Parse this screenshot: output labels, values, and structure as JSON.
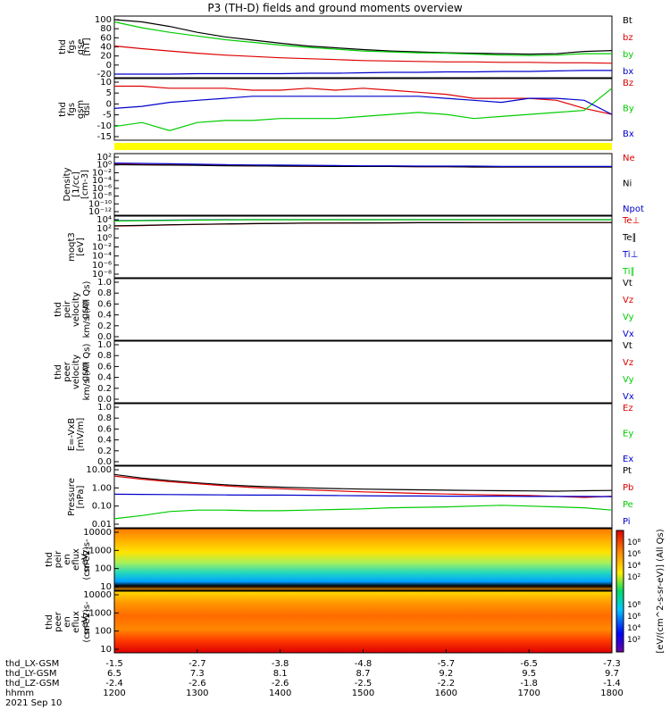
{
  "chart_data": {
    "type": "line",
    "title": "P3 (TH-D) fields and ground moments overview",
    "panels": [
      {
        "ylabel": [
          "thd",
          "fgs",
          "gse",
          "[nT]"
        ],
        "yticks": [
          "100",
          "80",
          "60",
          "40",
          "20",
          "0",
          "-20"
        ],
        "ylim": [
          -20,
          100
        ],
        "series": [
          {
            "name": "Bt",
            "color": "#000000",
            "values": [
              100,
              95,
              85,
              72,
              62,
              55,
              48,
              42,
              38,
              34,
              31,
              29,
              27,
              26,
              25,
              24,
              25,
              30,
              32
            ]
          },
          {
            "name": "bz",
            "color": "#dd0000",
            "values": [
              42,
              36,
              31,
              26,
              22,
              19,
              16,
              14,
              12,
              10,
              9,
              8,
              7,
              7,
              6,
              6,
              5,
              5,
              4
            ]
          },
          {
            "name": "by",
            "color": "#00cc00",
            "values": [
              95,
              82,
              72,
              64,
              56,
              50,
              44,
              39,
              35,
              31,
              29,
              27,
              26,
              24,
              22,
              21,
              22,
              25,
              25
            ]
          },
          {
            "name": "bx",
            "color": "#0000cc",
            "values": [
              -20,
              -20,
              -20,
              -19,
              -19,
              -19,
              -19,
              -18,
              -18,
              -17,
              -16,
              -16,
              -15,
              -15,
              -14,
              -14,
              -13,
              -12,
              -12
            ]
          }
        ]
      },
      {
        "ylabel": [
          "thd",
          "fgs",
          "gsm",
          "dsl"
        ],
        "yticks": [
          "10",
          "5",
          "0",
          "-5",
          "-10",
          "-15"
        ],
        "ylim": [
          -17,
          10
        ],
        "series": [
          {
            "name": "Bz",
            "color": "#dd0000",
            "values": [
              8,
              8,
              7,
              7,
              7,
              6,
              6,
              7,
              6,
              7,
              6,
              5,
              4,
              2,
              2,
              2,
              1,
              -3,
              -6
            ]
          },
          {
            "name": "By",
            "color": "#00cc00",
            "values": [
              -12,
              -10,
              -14,
              -10,
              -9,
              -9,
              -8,
              -8,
              -8,
              -7,
              -6,
              -5,
              -6,
              -8,
              -7,
              -6,
              -5,
              -4,
              7
            ]
          },
          {
            "name": "Bx",
            "color": "#0000cc",
            "values": [
              -3,
              -2,
              0,
              1,
              2,
              3,
              3,
              3,
              3,
              3,
              3,
              3,
              2,
              1,
              0,
              2,
              2,
              1,
              -6
            ]
          }
        ]
      },
      {
        "ylabel": [
          "Density",
          "[1/cc]",
          "[cm-3]"
        ],
        "yticks": [
          "10²",
          "10⁰",
          "10⁻²",
          "10⁻⁴",
          "10⁻⁶",
          "10⁻⁸",
          "10⁻¹⁰",
          "10⁻¹²"
        ],
        "series": [
          {
            "name": "Ne",
            "color": "#dd0000",
            "values": [
              1.5,
              1.2,
              1,
              0.9,
              0.7,
              0.6,
              0.5,
              0.45,
              0.4,
              0.4,
              0.4,
              0.35,
              0.35,
              0.3,
              0.3,
              0.3,
              0.3,
              0.3,
              0.3
            ]
          },
          {
            "name": "Ni",
            "color": "#000000",
            "values": [
              1.2,
              1.0,
              0.9,
              0.8,
              0.6,
              0.55,
              0.5,
              0.45,
              0.4,
              0.4,
              0.4,
              0.35,
              0.35,
              0.3,
              0.3,
              0.3,
              0.3,
              0.3,
              0.3
            ]
          },
          {
            "name": "Npot",
            "color": "#0000cc",
            "values": [
              3,
              2.5,
              2,
              1.5,
              1.2,
              1,
              0.9,
              0.8,
              0.7,
              0.6,
              0.6,
              0.5,
              0.5,
              0.5,
              0.4,
              0.4,
              0.4,
              0.4,
              0.4
            ]
          }
        ]
      },
      {
        "ylabel": [
          "moqt3",
          "[eV]"
        ],
        "yticks": [
          "10⁴",
          "10²",
          "10⁰",
          "10⁻²",
          "10⁻⁴",
          "10⁻⁶",
          "10⁻⁸"
        ],
        "series": [
          {
            "name": "Te⊥",
            "color": "#dd0000",
            "values": [
              400,
              500,
              700,
              900,
              1100,
              1300,
              1500,
              1700,
              1800,
              1900,
              2000,
              2100,
              2100,
              2200,
              2200,
              2300,
              2300,
              2300,
              2300
            ]
          },
          {
            "name": "Te∥",
            "color": "#000000",
            "values": [
              450,
              550,
              750,
              950,
              1150,
              1350,
              1550,
              1750,
              1850,
              1950,
              2050,
              2150,
              2150,
              2250,
              2250,
              2350,
              2350,
              2350,
              2350
            ]
          },
          {
            "name": "Ti⊥",
            "color": "#0000cc",
            "values": [
              6000,
              7000,
              8000,
              9000,
              10000,
              11000,
              12000,
              13000,
              13000,
              14000,
              14000,
              14000,
              15000,
              15000,
              15000,
              15000,
              15000,
              15000,
              15000
            ]
          },
          {
            "name": "Ti∥",
            "color": "#00cc00",
            "values": [
              5000,
              6000,
              7000,
              8000,
              9000,
              10000,
              11000,
              12000,
              12000,
              13000,
              13000,
              13000,
              14000,
              14000,
              14000,
              14000,
              14000,
              14000,
              14000
            ]
          }
        ]
      },
      {
        "ylabel": [
          "thd",
          "peir",
          "velocity",
          "gsm",
          "km/s (All Qs)"
        ],
        "yticks": [
          "1.0",
          "0.8",
          "0.6",
          "0.4",
          "0.2",
          "0.0"
        ],
        "legend": [
          {
            "name": "Vt",
            "color": "#000000"
          },
          {
            "name": "Vz",
            "color": "#dd0000"
          },
          {
            "name": "Vy",
            "color": "#00cc00"
          },
          {
            "name": "Vx",
            "color": "#0000cc"
          }
        ]
      },
      {
        "ylabel": [
          "thd",
          "peer",
          "velocity",
          "gsm",
          "km/s (All Qs)"
        ],
        "yticks": [
          "1.0",
          "0.8",
          "0.6",
          "0.4",
          "0.2",
          "0.0"
        ],
        "legend": [
          {
            "name": "Vt",
            "color": "#000000"
          },
          {
            "name": "Vz",
            "color": "#dd0000"
          },
          {
            "name": "Vy",
            "color": "#00cc00"
          },
          {
            "name": "Vx",
            "color": "#0000cc"
          }
        ]
      },
      {
        "ylabel": [
          "E=-VxB",
          "[mV/m]"
        ],
        "yticks": [
          "1.0",
          "0.8",
          "0.6",
          "0.4",
          "0.2",
          "0.0"
        ],
        "legend": [
          {
            "name": "Ez",
            "color": "#dd0000"
          },
          {
            "name": "Ey",
            "color": "#00cc00"
          },
          {
            "name": "Ex",
            "color": "#0000cc"
          }
        ]
      },
      {
        "ylabel": [
          "Pressure",
          "[nPa]"
        ],
        "yticks": [
          "10.00",
          "1.00",
          "0.10",
          "0.01"
        ],
        "series": [
          {
            "name": "Pt",
            "color": "#000000",
            "values": [
              5.5,
              3.5,
              2.5,
              1.9,
              1.5,
              1.25,
              1.1,
              1.0,
              0.92,
              0.86,
              0.82,
              0.78,
              0.75,
              0.72,
              0.7,
              0.68,
              0.66,
              0.7,
              0.72
            ]
          },
          {
            "name": "Pb",
            "color": "#dd0000",
            "values": [
              4.5,
              3.0,
              2.2,
              1.7,
              1.3,
              1.05,
              0.9,
              0.78,
              0.68,
              0.6,
              0.55,
              0.5,
              0.46,
              0.43,
              0.4,
              0.38,
              0.34,
              0.3,
              0.35
            ]
          },
          {
            "name": "Pe",
            "color": "#00cc00",
            "values": [
              0.02,
              0.03,
              0.05,
              0.06,
              0.06,
              0.055,
              0.055,
              0.06,
              0.065,
              0.07,
              0.08,
              0.085,
              0.09,
              0.1,
              0.11,
              0.1,
              0.09,
              0.08,
              0.06
            ]
          },
          {
            "name": "Pi",
            "color": "#0000cc",
            "values": [
              0.45,
              0.44,
              0.43,
              0.42,
              0.41,
              0.4,
              0.4,
              0.39,
              0.38,
              0.37,
              0.36,
              0.36,
              0.35,
              0.35,
              0.35,
              0.34,
              0.34,
              0.34,
              0.33
            ]
          }
        ]
      },
      {
        "ylabel": [
          "thd",
          "peir",
          "en",
          "eflux",
          "eV",
          "(cm^2-s-",
          "sr-eV)"
        ],
        "yticks": [
          "10000",
          "1000",
          "100",
          "10"
        ],
        "type": "heatmap"
      },
      {
        "ylabel": [
          "thd",
          "peer",
          "en",
          "eflux",
          "eV",
          "(cm^2-s-",
          "sr-eV)"
        ],
        "yticks": [
          "10000",
          "1000",
          "100",
          "10"
        ],
        "type": "heatmap"
      }
    ],
    "colorbar": {
      "ticks_top": [
        "10⁸",
        "10⁶",
        "10⁴",
        "10²"
      ],
      "ticks_bottom": [
        "10⁸",
        "10⁶",
        "10⁴",
        "10²"
      ],
      "label": "[eV/(cm^2-s-sr-eV)] (All Qs)"
    },
    "x_axis": {
      "rows": [
        {
          "label": "thd_LX-GSM",
          "values": [
            "-1.5",
            "-2.7",
            "-3.8",
            "-4.8",
            "-5.7",
            "-6.5",
            "-7.3"
          ]
        },
        {
          "label": "thd_LY-GSM",
          "values": [
            "6.5",
            "7.3",
            "8.1",
            "8.7",
            "9.2",
            "9.5",
            "9.7"
          ]
        },
        {
          "label": "thd_LZ-GSM",
          "values": [
            "-2.4",
            "-2.6",
            "-2.6",
            "-2.5",
            "-2.2",
            "-1.8",
            "-1.4"
          ]
        },
        {
          "label": "hhmm",
          "values": [
            "1200",
            "1300",
            "1400",
            "1500",
            "1600",
            "1700",
            "1800"
          ]
        }
      ],
      "date": "2021 Sep 10"
    }
  }
}
